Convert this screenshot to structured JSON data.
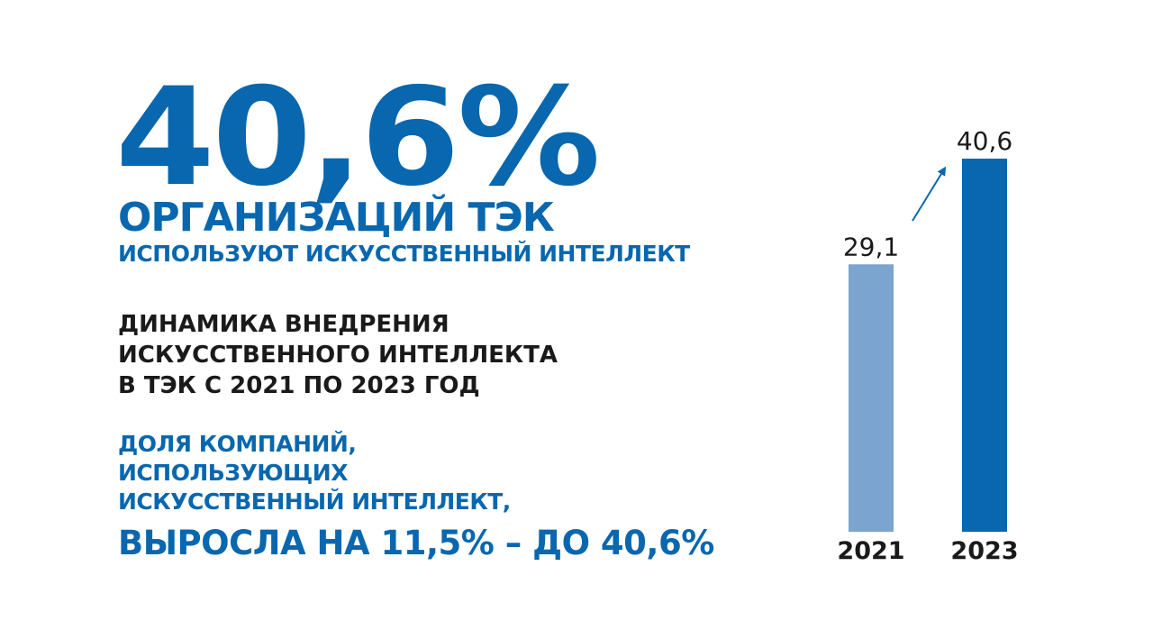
{
  "headline": {
    "percent": "40,6%",
    "title": "ОРГАНИЗАЦИЙ ТЭК",
    "subtitle": "ИСПОЛЬЗУЮТ ИСКУССТВЕННЫЙ ИНТЕЛЛЕКТ"
  },
  "dynamics": {
    "lines": [
      "ДИНАМИКА ВНЕДРЕНИЯ",
      "ИСКУССТВЕННОГО ИНТЕЛЛЕКТА",
      "В ТЭК С 2021 ПО 2023 ГОД"
    ]
  },
  "share": {
    "lines": [
      "ДОЛЯ КОМПАНИЙ,",
      "ИСПОЛЬЗУЮЩИХ",
      "ИСКУССТВЕННЫЙ ИНТЕЛЛЕКТ,"
    ],
    "growth": "ВЫРОСЛА НА 11,5% – ДО 40,6%"
  },
  "colors": {
    "brand_blue": "#0867ae",
    "bar_light": "#7ba4cf",
    "bar_dark": "#0867ae",
    "text_dark": "#1a1a1a"
  },
  "chart_data": {
    "type": "bar",
    "categories": [
      "2021",
      "2023"
    ],
    "values": [
      29.1,
      40.6
    ],
    "value_labels": [
      "29,1",
      "40,6"
    ],
    "bar_colors": [
      "#7ba4cf",
      "#0867ae"
    ],
    "ylim": [
      0,
      40.6
    ],
    "grid": false,
    "legend": "none",
    "annotation": "arrow-up-right"
  }
}
